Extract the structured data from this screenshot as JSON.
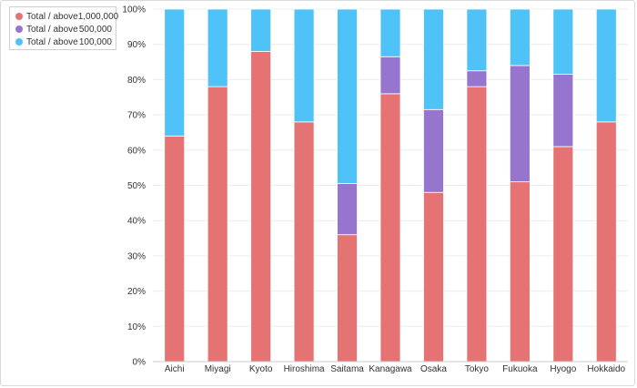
{
  "chart_data": {
    "type": "bar",
    "stacked": true,
    "categories": [
      "Aichi",
      "Miyagi",
      "Kyoto",
      "Hiroshima",
      "Saitama",
      "Kanagawa",
      "Osaka",
      "Tokyo",
      "Fukuoka",
      "Hyogo",
      "Hokkaido"
    ],
    "series": [
      {
        "name": "Total / above 1,000,000",
        "color": "#e57373",
        "values": [
          64,
          78,
          88,
          68,
          36,
          76,
          48,
          78,
          51,
          61,
          68
        ]
      },
      {
        "name": "Total / above 500,000",
        "color": "#9575cd",
        "values": [
          0,
          0,
          0,
          0,
          14.5,
          10.5,
          23.5,
          4.5,
          33,
          20.5,
          0
        ]
      },
      {
        "name": "Total / above 100,000",
        "color": "#4fc3f7",
        "values": [
          36,
          22,
          12,
          32,
          49.5,
          13.5,
          28.5,
          17.5,
          16,
          18.5,
          32
        ]
      }
    ],
    "ylim": [
      0,
      100
    ],
    "yticks": [
      "0%",
      "10%",
      "20%",
      "30%",
      "40%",
      "50%",
      "60%",
      "70%",
      "80%",
      "90%",
      "100%"
    ],
    "grid": true,
    "legend_position": "top-left"
  },
  "legend": [
    {
      "name": "Total / above",
      "threshold": "1,000,000",
      "color": "#e57373"
    },
    {
      "name": "Total / above",
      "threshold": "500,000",
      "color": "#9575cd"
    },
    {
      "name": "Total / above",
      "threshold": "100,000",
      "color": "#4fc3f7"
    }
  ]
}
